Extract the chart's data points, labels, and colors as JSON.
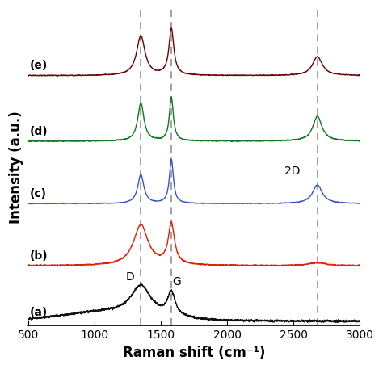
{
  "xlim": [
    500,
    3000
  ],
  "xlabel": "Raman shift (cm⁻¹)",
  "ylabel": "Intensity (a.u.)",
  "dashed_lines": [
    1350,
    1580,
    2680
  ],
  "annotation_2D": {
    "x": 2430,
    "text": "2D"
  },
  "annotation_D": {
    "x": 1270,
    "text": "D"
  },
  "annotation_G": {
    "x": 1620,
    "text": "G"
  },
  "series_labels": [
    "(a)",
    "(b)",
    "(c)",
    "(d)",
    "(e)"
  ],
  "series_colors": [
    "#111111",
    "#dd2200",
    "#3355bb",
    "#117722",
    "#6b0000"
  ],
  "series_offsets": [
    0.0,
    0.175,
    0.37,
    0.565,
    0.77
  ],
  "background_color": "#ffffff"
}
